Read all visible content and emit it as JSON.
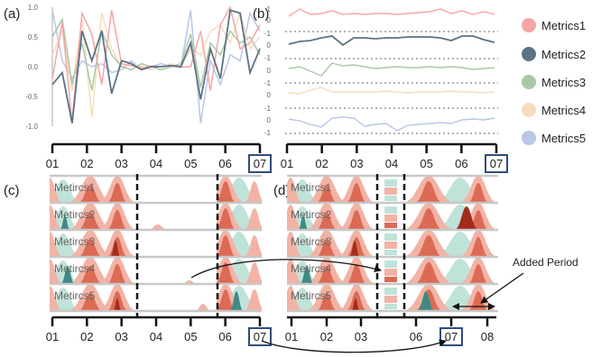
{
  "panels": {
    "a": "(a)",
    "b": "(b)",
    "c": "(c)",
    "d": "(d)"
  },
  "panel_a": {
    "yticks": [
      "1.0",
      "0.5",
      "0.0",
      "-0.5",
      "-1.0"
    ]
  },
  "panel_b": {
    "yticks": [
      "1",
      "0",
      "-1",
      "0",
      "-1",
      "0",
      "-1",
      "0",
      "-1",
      "0",
      "-1"
    ]
  },
  "axis_abc": [
    "01",
    "02",
    "03",
    "04",
    "05",
    "06",
    "07"
  ],
  "axis_d": [
    "01",
    "02",
    "03",
    "06",
    "07",
    "08"
  ],
  "highlight_tick": "07",
  "rows": [
    "Metircs1",
    "Metircs2",
    "Metircs3",
    "Metircs4",
    "Metircs5"
  ],
  "legend": [
    {
      "name": "Metrics1",
      "color": "#f4a6a6"
    },
    {
      "name": "Metrics2",
      "color": "#5b7386"
    },
    {
      "name": "Metrics3",
      "color": "#a9c9a6"
    },
    {
      "name": "Metrics4",
      "color": "#f9dcbc"
    },
    {
      "name": "Metrics5",
      "color": "#b9c6e8"
    }
  ],
  "annotation": "Added Period",
  "colors": {
    "highlight_box": "#2e4d7a",
    "red_dark": "#a32b1b",
    "red_mid": "#dc6a55",
    "red_light": "#f2b3a5",
    "teal_dark": "#3e8a85",
    "teal_light": "#bfe3d8"
  }
}
